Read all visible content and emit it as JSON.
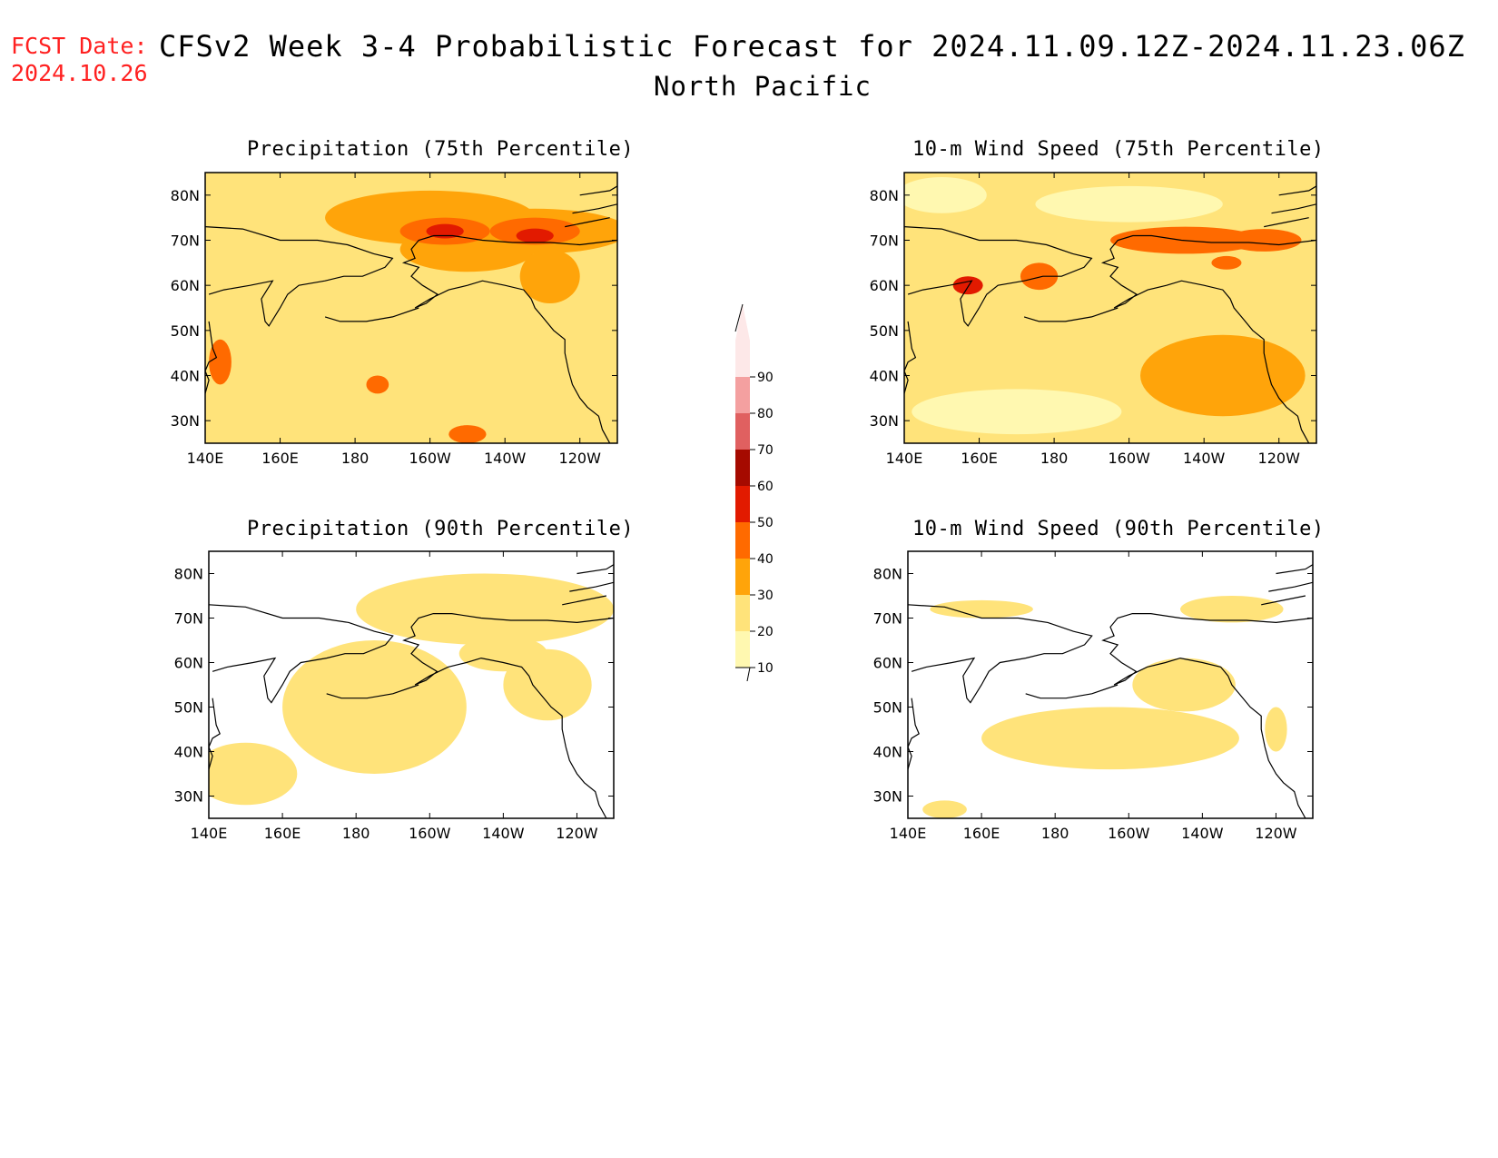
{
  "header": {
    "fcst_date_label": "FCST Date:",
    "fcst_date_value": "2024.10.26",
    "title": "CFSv2 Week 3-4 Probabilistic Forecast for 2024.11.09.12Z-2024.11.23.06Z",
    "subtitle": "North Pacific"
  },
  "colors": {
    "levels": [
      {
        "min": 10,
        "max": 20,
        "hex": "#fff8b0"
      },
      {
        "min": 20,
        "max": 30,
        "hex": "#ffe37a"
      },
      {
        "min": 30,
        "max": 40,
        "hex": "#ffa40a"
      },
      {
        "min": 40,
        "max": 50,
        "hex": "#ff6a00"
      },
      {
        "min": 50,
        "max": 60,
        "hex": "#e21a00"
      },
      {
        "min": 60,
        "max": 70,
        "hex": "#a50a00"
      },
      {
        "min": 70,
        "max": 80,
        "hex": "#e06060"
      },
      {
        "min": 80,
        "max": 90,
        "hex": "#f4a0a0"
      },
      {
        "min": 90,
        "max": 100,
        "hex": "#fde8e8"
      }
    ]
  },
  "colorbar": {
    "tick_labels": [
      "10",
      "20",
      "30",
      "40",
      "50",
      "60",
      "70",
      "80",
      "90"
    ]
  },
  "axes": {
    "lon_labels": [
      "140E",
      "160E",
      "180",
      "160W",
      "140W",
      "120W"
    ],
    "lat_labels": [
      "30N",
      "40N",
      "50N",
      "60N",
      "70N",
      "80N"
    ],
    "lon_values": [
      140,
      160,
      180,
      200,
      220,
      240
    ],
    "lat_values": [
      30,
      40,
      50,
      60,
      70,
      80
    ],
    "lon_range": [
      140,
      250
    ],
    "lat_range": [
      25,
      85
    ]
  },
  "panels": [
    {
      "id": "precip75",
      "title": "Precipitation (75th Percentile)",
      "base_level": 1,
      "patches": [
        {
          "lon": 200,
          "lat": 75,
          "rx": 28,
          "ry": 6,
          "level": 2
        },
        {
          "lon": 228,
          "lat": 72,
          "rx": 25,
          "ry": 5,
          "level": 2
        },
        {
          "lon": 210,
          "lat": 68,
          "rx": 18,
          "ry": 5,
          "level": 2
        },
        {
          "lon": 232,
          "lat": 62,
          "rx": 8,
          "ry": 6,
          "level": 2
        },
        {
          "lon": 204,
          "lat": 72,
          "rx": 12,
          "ry": 3,
          "level": 3
        },
        {
          "lon": 228,
          "lat": 72,
          "rx": 12,
          "ry": 3,
          "level": 3
        },
        {
          "lon": 204,
          "lat": 72,
          "rx": 5,
          "ry": 1.6,
          "level": 4
        },
        {
          "lon": 228,
          "lat": 71,
          "rx": 5,
          "ry": 1.6,
          "level": 4
        },
        {
          "lon": 144,
          "lat": 43,
          "rx": 3,
          "ry": 5,
          "level": 3
        },
        {
          "lon": 186,
          "lat": 38,
          "rx": 3,
          "ry": 2,
          "level": 3
        },
        {
          "lon": 210,
          "lat": 27,
          "rx": 5,
          "ry": 2,
          "level": 3
        }
      ]
    },
    {
      "id": "wind75",
      "title": "10-m Wind Speed (75th Percentile)",
      "base_level": 1,
      "patches": [
        {
          "lon": 200,
          "lat": 78,
          "rx": 25,
          "ry": 4,
          "level": 0
        },
        {
          "lon": 150,
          "lat": 80,
          "rx": 12,
          "ry": 4,
          "level": 0
        },
        {
          "lon": 215,
          "lat": 70,
          "rx": 20,
          "ry": 3,
          "level": 3
        },
        {
          "lon": 236,
          "lat": 70,
          "rx": 10,
          "ry": 2.5,
          "level": 3
        },
        {
          "lon": 226,
          "lat": 65,
          "rx": 4,
          "ry": 1.5,
          "level": 3
        },
        {
          "lon": 157,
          "lat": 60,
          "rx": 4,
          "ry": 2,
          "level": 4
        },
        {
          "lon": 176,
          "lat": 62,
          "rx": 5,
          "ry": 3,
          "level": 3
        },
        {
          "lon": 225,
          "lat": 40,
          "rx": 22,
          "ry": 9,
          "level": 2
        },
        {
          "lon": 170,
          "lat": 32,
          "rx": 28,
          "ry": 5,
          "level": 0
        }
      ]
    },
    {
      "id": "precip90",
      "title": "Precipitation (90th Percentile)",
      "base_level": -1,
      "patches": [
        {
          "lon": 215,
          "lat": 72,
          "rx": 35,
          "ry": 8,
          "level": 1
        },
        {
          "lon": 185,
          "lat": 50,
          "rx": 25,
          "ry": 15,
          "level": 1
        },
        {
          "lon": 150,
          "lat": 35,
          "rx": 14,
          "ry": 7,
          "level": 1
        },
        {
          "lon": 232,
          "lat": 55,
          "rx": 12,
          "ry": 8,
          "level": 1
        },
        {
          "lon": 220,
          "lat": 62,
          "rx": 12,
          "ry": 4,
          "level": 1
        }
      ]
    },
    {
      "id": "wind90",
      "title": "10-m Wind Speed (90th Percentile)",
      "base_level": -1,
      "patches": [
        {
          "lon": 195,
          "lat": 43,
          "rx": 35,
          "ry": 7,
          "level": 1
        },
        {
          "lon": 215,
          "lat": 55,
          "rx": 14,
          "ry": 6,
          "level": 1
        },
        {
          "lon": 228,
          "lat": 72,
          "rx": 14,
          "ry": 3,
          "level": 1
        },
        {
          "lon": 160,
          "lat": 72,
          "rx": 14,
          "ry": 2,
          "level": 1
        },
        {
          "lon": 240,
          "lat": 45,
          "rx": 3,
          "ry": 5,
          "level": 1
        },
        {
          "lon": 150,
          "lat": 27,
          "rx": 6,
          "ry": 2,
          "level": 1
        }
      ]
    }
  ]
}
